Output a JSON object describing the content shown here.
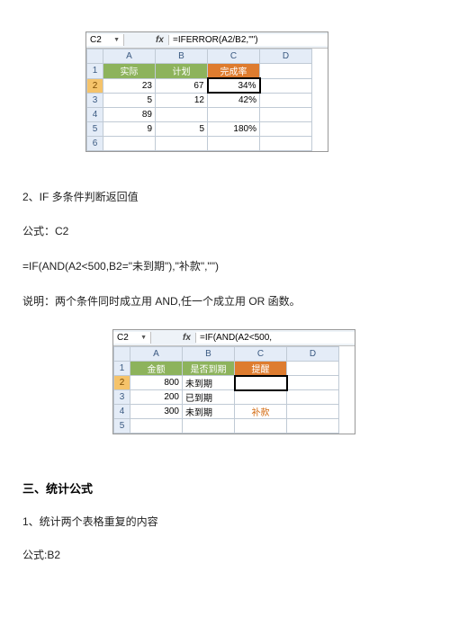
{
  "sheet1": {
    "cellRef": "C2",
    "fxLabel": "fx",
    "formula": "=IFERROR(A2/B2,\"\")",
    "colHeaders": [
      "A",
      "B",
      "C",
      "D"
    ],
    "rowHeaders": [
      "1",
      "2",
      "3",
      "4",
      "5",
      "6"
    ],
    "headers": [
      "实际",
      "计划",
      "完成率"
    ],
    "header_colors": [
      "#8db35c",
      "#8db35c",
      "#de7c2f"
    ],
    "rows": [
      [
        "23",
        "67",
        "34%"
      ],
      [
        "5",
        "12",
        "42%"
      ],
      [
        "89",
        "",
        ""
      ],
      [
        "9",
        "5",
        "180%"
      ]
    ],
    "selected_cell": {
      "row": 0,
      "col": 2
    },
    "selected_rowhead_index": 1,
    "colhead_bg": "#e4ecf7",
    "rowhead_sel_bg": "#f5c36a",
    "border_color": "#c0cad5"
  },
  "text": {
    "t1": "2、IF 多条件判断返回值",
    "t2": "公式：C2",
    "t3": "=IF(AND(A2<500,B2=\"未到期\"),\"补款\",\"\")",
    "t4": "说明：两个条件同时成立用 AND,任一个成立用 OR 函数。",
    "h3": "三、统计公式",
    "t5": "1、统计两个表格重复的内容",
    "t6": "公式:B2"
  },
  "sheet2": {
    "cellRef": "C2",
    "fxLabel": "fx",
    "formula": "=IF(AND(A2<500,",
    "colHeaders": [
      "A",
      "B",
      "C",
      "D"
    ],
    "rowHeaders": [
      "1",
      "2",
      "3",
      "4",
      "5"
    ],
    "headers": [
      "金额",
      "是否到期",
      "提醒"
    ],
    "header_colors": [
      "#8db35c",
      "#8db35c",
      "#de7c2f"
    ],
    "rows": [
      [
        "800",
        "未到期",
        ""
      ],
      [
        "200",
        "已到期",
        ""
      ],
      [
        "300",
        "未到期",
        "补款"
      ]
    ],
    "selected_cell": {
      "row": 0,
      "col": 2
    },
    "selected_rowhead_index": 1,
    "warn_color": "#d36a0f"
  }
}
